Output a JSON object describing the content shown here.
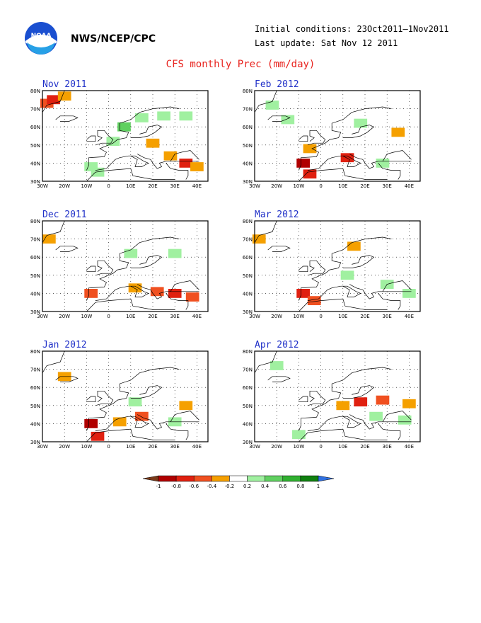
{
  "header": {
    "agency": "NWS/NCEP/CPC",
    "initial": "Initial conditions: 23Oct2011–1Nov2011",
    "update": "Last update: Sat Nov 12 2011",
    "logo_text": "NOAA"
  },
  "title": "CFS monthly Prec (mm/day)",
  "chart_data": {
    "type": "heatmap",
    "title": "CFS monthly Prec (mm/day)",
    "xticks": [
      "30W",
      "20W",
      "10W",
      "0",
      "10E",
      "20E",
      "30E",
      "40E"
    ],
    "yticks": [
      "80N",
      "70N",
      "60N",
      "50N",
      "40N",
      "30N"
    ],
    "xlim": [
      -30,
      45
    ],
    "ylim": [
      30,
      80
    ],
    "panels": [
      {
        "name": "Nov 2011",
        "anomalies": [
          {
            "lon": -28,
            "lat": 73,
            "v": -0.5
          },
          {
            "lon": -25,
            "lat": 75,
            "v": -0.7
          },
          {
            "lon": -20,
            "lat": 77,
            "v": -0.3
          },
          {
            "lon": 7,
            "lat": 60,
            "v": 0.5
          },
          {
            "lon": 15,
            "lat": 65,
            "v": 0.4
          },
          {
            "lon": 25,
            "lat": 66,
            "v": 0.3
          },
          {
            "lon": 35,
            "lat": 66,
            "v": 0.4
          },
          {
            "lon": 2,
            "lat": 52,
            "v": 0.3
          },
          {
            "lon": -8,
            "lat": 38,
            "v": 0.4
          },
          {
            "lon": -5,
            "lat": 35,
            "v": 0.3
          },
          {
            "lon": 20,
            "lat": 51,
            "v": -0.3
          },
          {
            "lon": 28,
            "lat": 44,
            "v": -0.3
          },
          {
            "lon": 35,
            "lat": 40,
            "v": -0.7
          },
          {
            "lon": 40,
            "lat": 38,
            "v": -0.3
          }
        ]
      },
      {
        "name": "Dec 2011",
        "anomalies": [
          {
            "lon": -27,
            "lat": 70,
            "v": -0.3
          },
          {
            "lon": 10,
            "lat": 62,
            "v": 0.3
          },
          {
            "lon": 30,
            "lat": 62,
            "v": 0.4
          },
          {
            "lon": -8,
            "lat": 40,
            "v": -0.5
          },
          {
            "lon": 12,
            "lat": 43,
            "v": -0.3
          },
          {
            "lon": 22,
            "lat": 41,
            "v": -0.5
          },
          {
            "lon": 30,
            "lat": 40,
            "v": -0.7
          },
          {
            "lon": 38,
            "lat": 38,
            "v": -0.5
          }
        ]
      },
      {
        "name": "Jan 2012",
        "anomalies": [
          {
            "lon": -20,
            "lat": 66,
            "v": -0.3
          },
          {
            "lon": -8,
            "lat": 40,
            "v": -0.8
          },
          {
            "lon": -5,
            "lat": 33,
            "v": -0.6
          },
          {
            "lon": 5,
            "lat": 41,
            "v": -0.3
          },
          {
            "lon": 15,
            "lat": 44,
            "v": -0.5
          },
          {
            "lon": 35,
            "lat": 50,
            "v": -0.3
          },
          {
            "lon": 30,
            "lat": 41,
            "v": 0.3
          },
          {
            "lon": 12,
            "lat": 52,
            "v": 0.3
          }
        ]
      },
      {
        "name": "Feb 2012",
        "anomalies": [
          {
            "lon": -22,
            "lat": 72,
            "v": 0.3
          },
          {
            "lon": -15,
            "lat": 64,
            "v": 0.3
          },
          {
            "lon": 18,
            "lat": 62,
            "v": 0.3
          },
          {
            "lon": 35,
            "lat": 57,
            "v": -0.3
          },
          {
            "lon": -5,
            "lat": 48,
            "v": -0.3
          },
          {
            "lon": -8,
            "lat": 40,
            "v": -0.8
          },
          {
            "lon": -5,
            "lat": 34,
            "v": -0.6
          },
          {
            "lon": 12,
            "lat": 43,
            "v": -0.6
          },
          {
            "lon": 28,
            "lat": 40,
            "v": 0.3
          }
        ]
      },
      {
        "name": "Mar 2012",
        "anomalies": [
          {
            "lon": -28,
            "lat": 70,
            "v": -0.3
          },
          {
            "lon": 15,
            "lat": 66,
            "v": -0.3
          },
          {
            "lon": -8,
            "lat": 40,
            "v": -0.6
          },
          {
            "lon": -3,
            "lat": 36,
            "v": -0.4
          },
          {
            "lon": 12,
            "lat": 50,
            "v": 0.3
          },
          {
            "lon": 30,
            "lat": 45,
            "v": 0.3
          },
          {
            "lon": 40,
            "lat": 40,
            "v": 0.3
          }
        ]
      },
      {
        "name": "Apr 2012",
        "anomalies": [
          {
            "lon": -20,
            "lat": 72,
            "v": 0.3
          },
          {
            "lon": -10,
            "lat": 34,
            "v": 0.3
          },
          {
            "lon": 10,
            "lat": 50,
            "v": -0.3
          },
          {
            "lon": 18,
            "lat": 52,
            "v": -0.6
          },
          {
            "lon": 28,
            "lat": 53,
            "v": -0.5
          },
          {
            "lon": 40,
            "lat": 51,
            "v": -0.3
          },
          {
            "lon": 25,
            "lat": 44,
            "v": 0.3
          },
          {
            "lon": 38,
            "lat": 42,
            "v": 0.3
          }
        ]
      }
    ],
    "colorbar": {
      "ticks": [
        "-1",
        "-0.8",
        "-0.6",
        "-0.4",
        "-0.2",
        "0.2",
        "0.4",
        "0.6",
        "0.8",
        "1"
      ],
      "colors": [
        "#7a3a1a",
        "#b00000",
        "#e02010",
        "#f05020",
        "#f5a000",
        "#ffffff",
        "#a0f0a0",
        "#60d060",
        "#30b030",
        "#108010",
        "#3070e0"
      ]
    }
  }
}
